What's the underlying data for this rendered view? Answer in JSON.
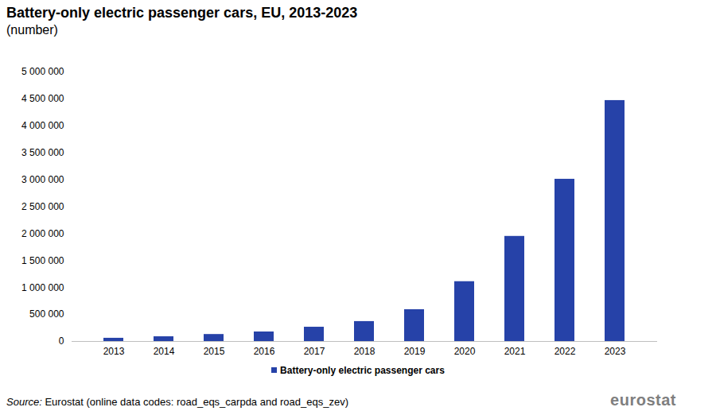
{
  "chart_data": {
    "type": "bar",
    "title": "Battery-only electric passenger cars, EU, 2013-2023",
    "subtitle": "(number)",
    "categories": [
      "2013",
      "2014",
      "2015",
      "2016",
      "2017",
      "2018",
      "2019",
      "2020",
      "2021",
      "2022",
      "2023"
    ],
    "series": [
      {
        "name": "Battery-only electric passenger cars",
        "color": "#2642a8",
        "values": [
          60000,
          88000,
          130000,
          177000,
          265000,
          370000,
          590000,
          1110000,
          1950000,
          3010000,
          4470000
        ]
      }
    ],
    "ylim": [
      0,
      5000000
    ],
    "yticks": [
      0,
      {
        "value": 500000,
        "label": "500 000"
      },
      {
        "value": 1000000,
        "label": "1 000 000"
      },
      {
        "value": 1500000,
        "label": "1 500 000"
      },
      {
        "value": 2000000,
        "label": "2 000 000"
      },
      {
        "value": 2500000,
        "label": "2 500 000"
      },
      {
        "value": 3000000,
        "label": "3 000 000"
      },
      {
        "value": 3500000,
        "label": "3 500 000"
      },
      {
        "value": 4000000,
        "label": "4 000 000"
      },
      {
        "value": 4500000,
        "label": "4 500 000"
      },
      {
        "value": 5000000,
        "label": "5 000 000"
      }
    ],
    "grid": false,
    "legend": "bottom",
    "source_label": "Source:",
    "source": "Eurostat (online data codes: road_eqs_carpda and road_eqs_zev)",
    "logo": "eurostat"
  }
}
